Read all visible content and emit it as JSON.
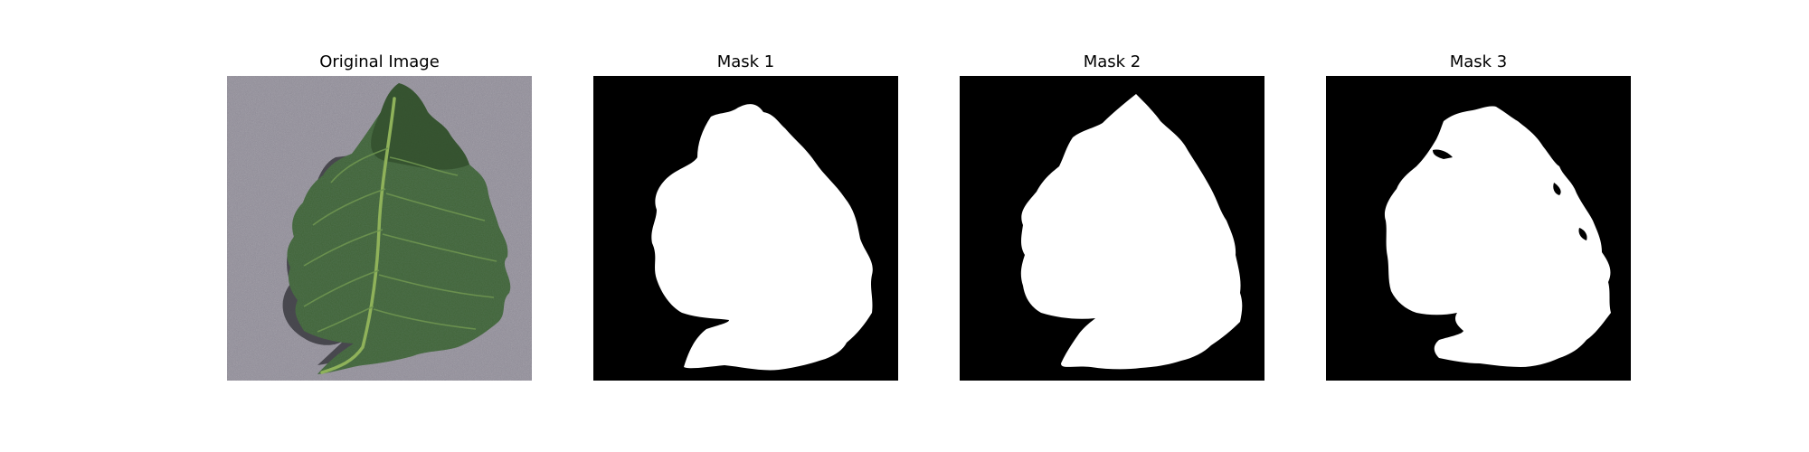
{
  "figure": {
    "panels": [
      {
        "title": "Original Image"
      },
      {
        "title": "Mask 1"
      },
      {
        "title": "Mask 2"
      },
      {
        "title": "Mask 3"
      }
    ]
  },
  "colors": {
    "background_paper": "#8f8b98",
    "leaf_dark": "#2f4a2a",
    "leaf_mid": "#4f7342",
    "leaf_vein": "#8fb25a",
    "mask_background": "#000000",
    "mask_foreground": "#ffffff"
  }
}
